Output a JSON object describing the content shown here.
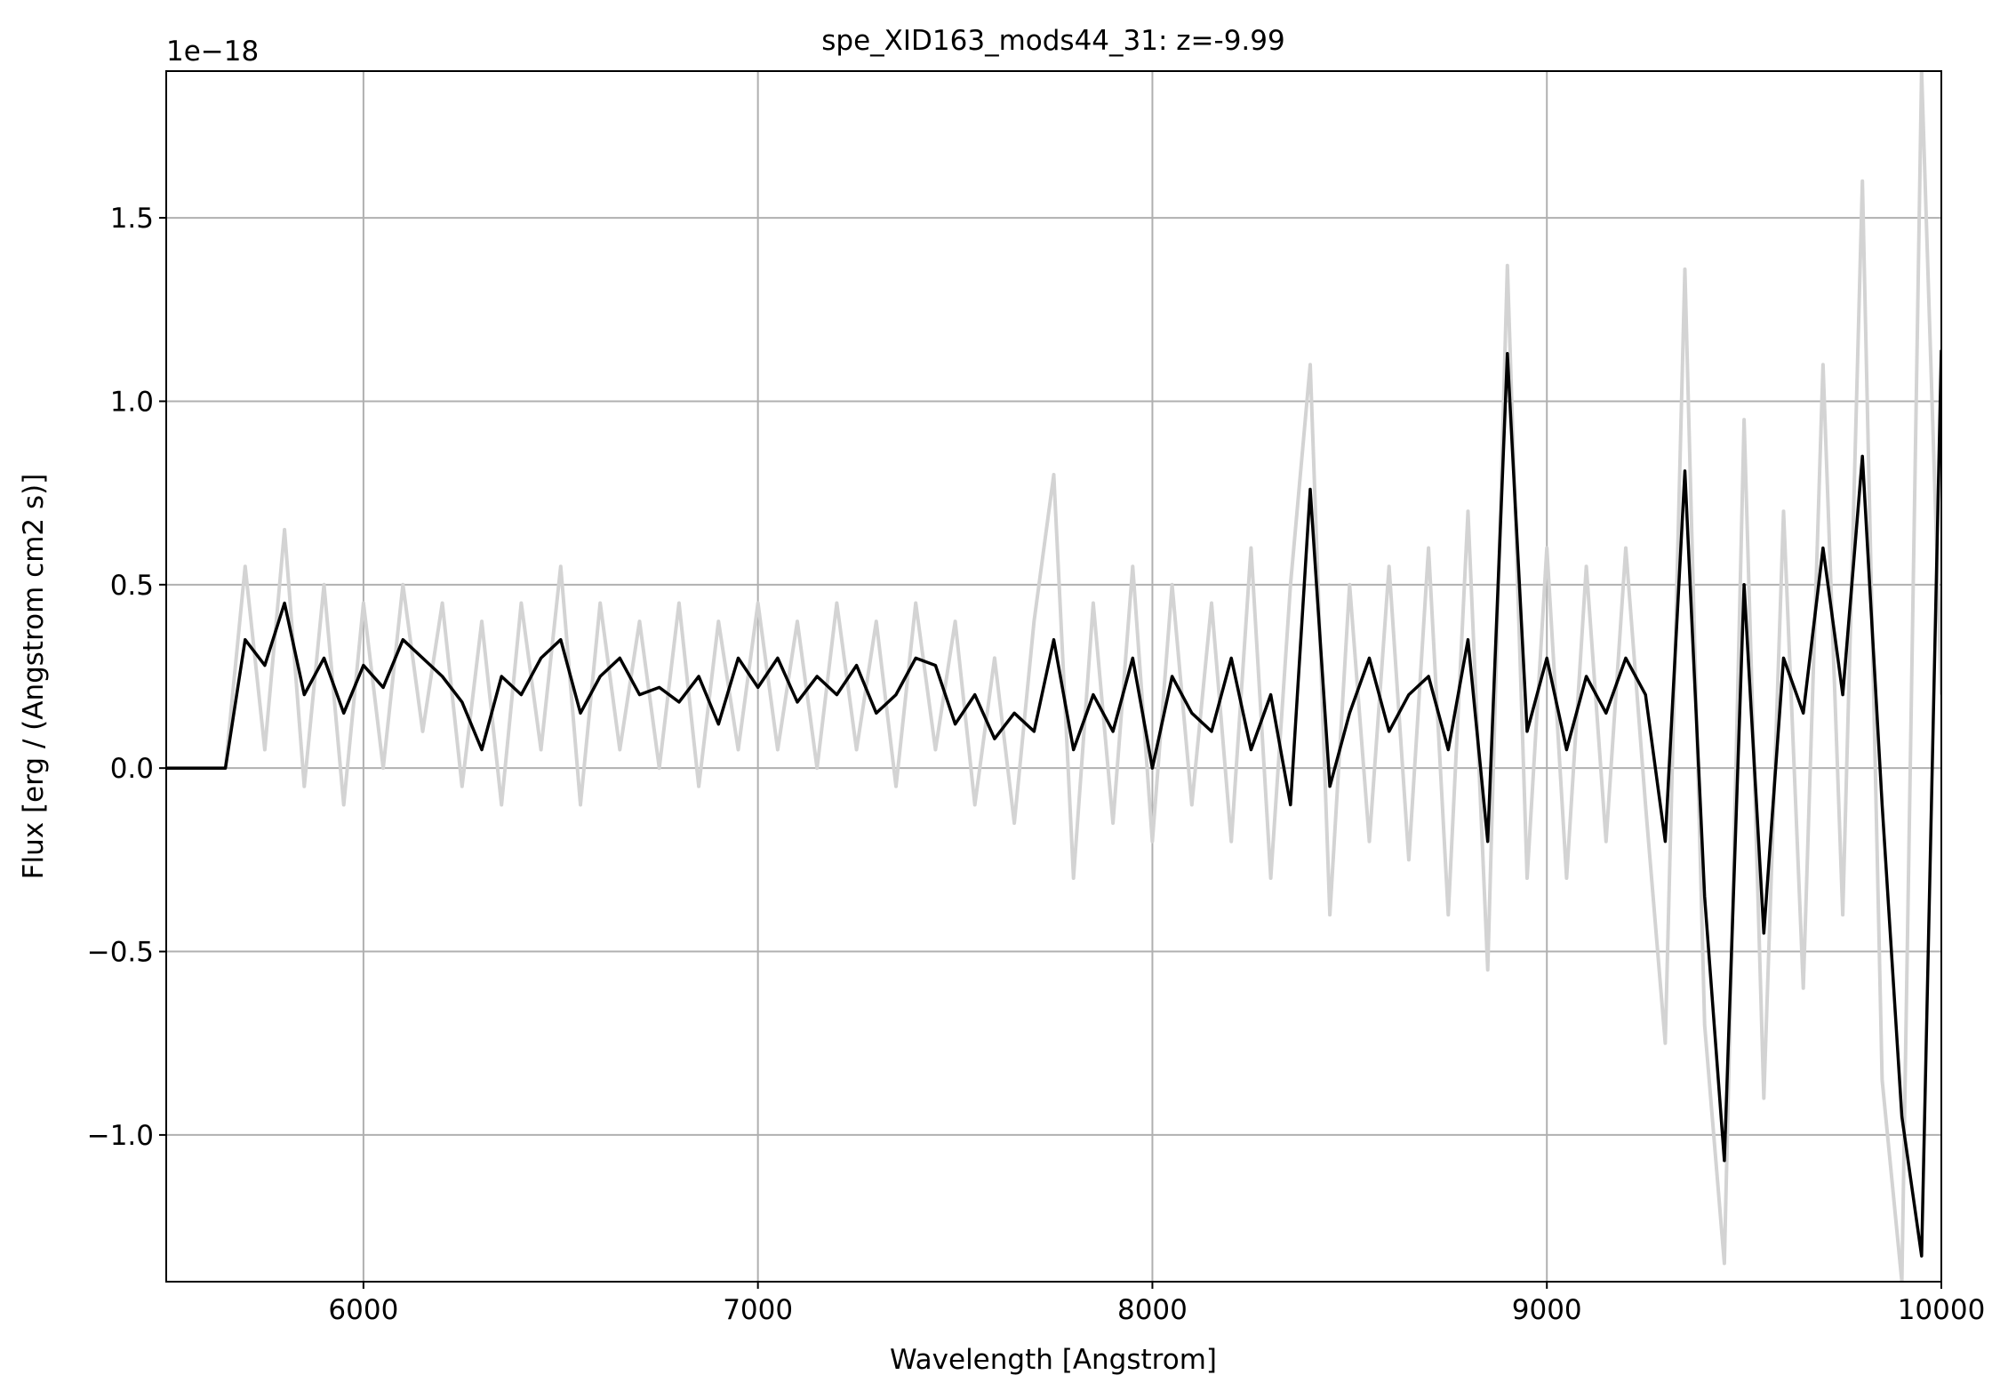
{
  "chart_data": {
    "type": "line",
    "title": "spe_XID163_mods44_31: z=-9.99",
    "x_label": "Wavelength [Angstrom]",
    "y_label": "Flux [erg / (Angstrom cm2 s)]",
    "y_offset_label": "1e−18",
    "xlim": [
      5500,
      10000
    ],
    "ylim": [
      -1.4,
      1.9
    ],
    "xticks": [
      6000,
      7000,
      8000,
      9000,
      10000
    ],
    "yticks": [
      {
        "value": -1.0,
        "label": "−1.0"
      },
      {
        "value": -0.5,
        "label": "−0.5"
      },
      {
        "value": 0,
        "label": "0.0"
      },
      0.5,
      {
        "value": 1.0,
        "label": "1.0"
      },
      1.5
    ],
    "grid": true,
    "x": [
      5500,
      5550,
      5600,
      5650,
      5700,
      5750,
      5800,
      5850,
      5900,
      5950,
      6000,
      6050,
      6100,
      6150,
      6200,
      6250,
      6300,
      6350,
      6400,
      6450,
      6500,
      6550,
      6600,
      6650,
      6700,
      6750,
      6800,
      6850,
      6900,
      6950,
      7000,
      7050,
      7100,
      7150,
      7200,
      7250,
      7300,
      7350,
      7400,
      7450,
      7500,
      7550,
      7600,
      7650,
      7700,
      7750,
      7800,
      7850,
      7900,
      7950,
      8000,
      8050,
      8100,
      8150,
      8200,
      8250,
      8300,
      8350,
      8400,
      8450,
      8500,
      8550,
      8600,
      8650,
      8700,
      8750,
      8800,
      8850,
      8900,
      8950,
      9000,
      9050,
      9100,
      9150,
      9200,
      9250,
      9300,
      9350,
      9400,
      9450,
      9500,
      9550,
      9600,
      9650,
      9700,
      9750,
      9800,
      9850,
      9900,
      9950,
      10000
    ],
    "series": [
      {
        "color": "#d3d3d3",
        "values": [
          0,
          0,
          0,
          0,
          0.55,
          0.05,
          0.65,
          -0.05,
          0.5,
          -0.1,
          0.45,
          0.0,
          0.5,
          0.1,
          0.45,
          -0.05,
          0.4,
          -0.1,
          0.45,
          0.05,
          0.55,
          -0.1,
          0.45,
          0.05,
          0.4,
          0.0,
          0.45,
          -0.05,
          0.4,
          0.05,
          0.45,
          0.05,
          0.4,
          0.0,
          0.45,
          0.05,
          0.4,
          -0.05,
          0.45,
          0.05,
          0.4,
          -0.1,
          0.3,
          -0.15,
          0.4,
          0.8,
          -0.3,
          0.45,
          -0.15,
          0.55,
          -0.2,
          0.5,
          -0.1,
          0.45,
          -0.2,
          0.6,
          -0.3,
          0.5,
          1.1,
          -0.4,
          0.5,
          -0.2,
          0.55,
          -0.25,
          0.6,
          -0.4,
          0.7,
          -0.55,
          1.37,
          -0.3,
          0.6,
          -0.3,
          0.55,
          -0.2,
          0.6,
          -0.1,
          -0.75,
          1.36,
          -0.7,
          -1.35,
          0.95,
          -0.9,
          0.7,
          -0.6,
          1.1,
          -0.4,
          1.6,
          -0.85,
          -1.4,
          1.9,
          0.2
        ]
      },
      {
        "color": "#000000",
        "values": [
          0,
          0,
          0,
          0,
          0.35,
          0.28,
          0.45,
          0.2,
          0.3,
          0.15,
          0.28,
          0.22,
          0.35,
          0.3,
          0.25,
          0.18,
          0.05,
          0.25,
          0.2,
          0.3,
          0.35,
          0.15,
          0.25,
          0.3,
          0.2,
          0.22,
          0.18,
          0.25,
          0.12,
          0.3,
          0.22,
          0.3,
          0.18,
          0.25,
          0.2,
          0.28,
          0.15,
          0.2,
          0.3,
          0.28,
          0.12,
          0.2,
          0.08,
          0.15,
          0.1,
          0.35,
          0.05,
          0.2,
          0.1,
          0.3,
          0.0,
          0.25,
          0.15,
          0.1,
          0.3,
          0.05,
          0.2,
          -0.1,
          0.76,
          -0.05,
          0.15,
          0.3,
          0.1,
          0.2,
          0.25,
          0.05,
          0.35,
          -0.2,
          1.13,
          0.1,
          0.3,
          0.05,
          0.25,
          0.15,
          0.3,
          0.2,
          -0.2,
          0.81,
          -0.35,
          -1.07,
          0.5,
          -0.45,
          0.3,
          0.15,
          0.6,
          0.2,
          0.85,
          -0.1,
          -0.95,
          -1.33,
          1.14
        ]
      }
    ]
  }
}
